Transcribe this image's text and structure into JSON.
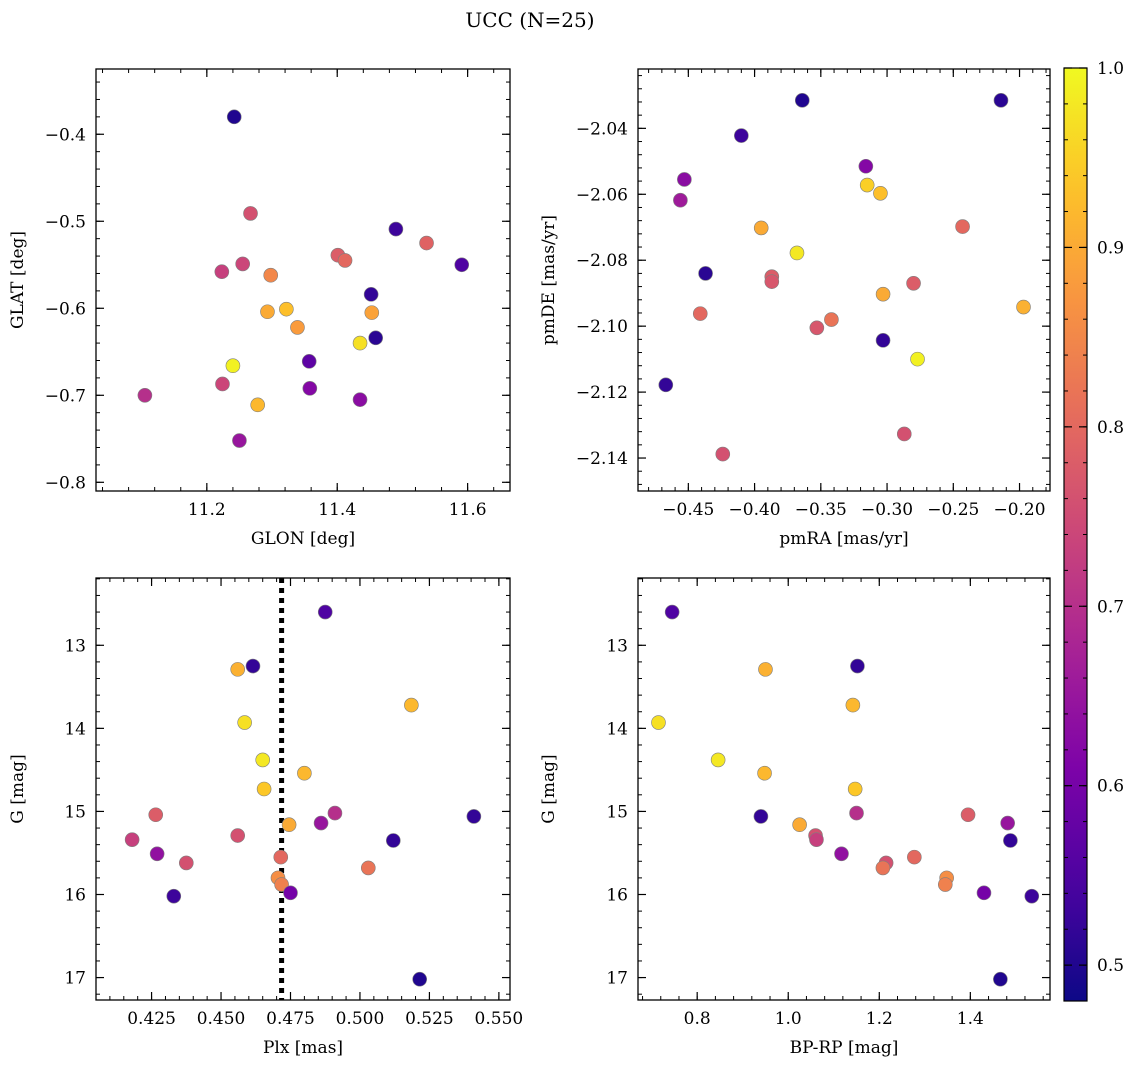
{
  "figure": {
    "suptitle": "UCC (N=25)"
  },
  "colors": {
    "colormap": "plasma",
    "marker_edge": "#7f7f7f",
    "reference_line": "#000000"
  },
  "colorbar": {
    "range": [
      0.48,
      1.0
    ],
    "ticks": [
      0.5,
      0.6,
      0.7,
      0.8,
      0.9,
      1.0
    ],
    "tick_labels": [
      "0.5",
      "0.6",
      "0.7",
      "0.8",
      "0.9",
      "1.0"
    ]
  },
  "chart_data": [
    {
      "type": "scatter",
      "xlabel": "GLON [deg]",
      "ylabel": "GLAT [deg]",
      "xlim": [
        11.03,
        11.665
      ],
      "ylim": [
        -0.81,
        -0.325
      ],
      "xticks": [
        11.2,
        11.4,
        11.6
      ],
      "xtick_labels": [
        "11.2",
        "11.4",
        "11.6"
      ],
      "yticks": [
        -0.8,
        -0.7,
        -0.6,
        -0.5,
        -0.4
      ],
      "ytick_labels": [
        "−0.8",
        "−0.7",
        "−0.6",
        "−0.5",
        "−0.4"
      ],
      "points": [
        {
          "x": 11.242,
          "y": -0.38,
          "c": 0.5
        },
        {
          "x": 11.267,
          "y": -0.491,
          "c": 0.76
        },
        {
          "x": 11.49,
          "y": -0.509,
          "c": 0.53
        },
        {
          "x": 11.537,
          "y": -0.525,
          "c": 0.79
        },
        {
          "x": 11.401,
          "y": -0.539,
          "c": 0.78
        },
        {
          "x": 11.412,
          "y": -0.545,
          "c": 0.8
        },
        {
          "x": 11.591,
          "y": -0.55,
          "c": 0.55
        },
        {
          "x": 11.255,
          "y": -0.549,
          "c": 0.74
        },
        {
          "x": 11.223,
          "y": -0.558,
          "c": 0.73
        },
        {
          "x": 11.298,
          "y": -0.562,
          "c": 0.85
        },
        {
          "x": 11.452,
          "y": -0.584,
          "c": 0.52
        },
        {
          "x": 11.322,
          "y": -0.601,
          "c": 0.93
        },
        {
          "x": 11.293,
          "y": -0.604,
          "c": 0.9
        },
        {
          "x": 11.453,
          "y": -0.605,
          "c": 0.89
        },
        {
          "x": 11.339,
          "y": -0.622,
          "c": 0.88
        },
        {
          "x": 11.459,
          "y": -0.634,
          "c": 0.51
        },
        {
          "x": 11.435,
          "y": -0.64,
          "c": 0.97
        },
        {
          "x": 11.357,
          "y": -0.661,
          "c": 0.57
        },
        {
          "x": 11.24,
          "y": -0.666,
          "c": 0.99
        },
        {
          "x": 11.224,
          "y": -0.687,
          "c": 0.74
        },
        {
          "x": 11.358,
          "y": -0.692,
          "c": 0.62
        },
        {
          "x": 11.105,
          "y": -0.7,
          "c": 0.7
        },
        {
          "x": 11.435,
          "y": -0.705,
          "c": 0.63
        },
        {
          "x": 11.278,
          "y": -0.711,
          "c": 0.92
        },
        {
          "x": 11.25,
          "y": -0.752,
          "c": 0.65
        }
      ]
    },
    {
      "type": "scatter",
      "xlabel": "pmRA [mas/yr]",
      "ylabel": "pmDE [mas/yr]",
      "xlim": [
        -0.488,
        -0.177
      ],
      "ylim": [
        -2.15,
        -2.022
      ],
      "xticks": [
        -0.45,
        -0.4,
        -0.35,
        -0.3,
        -0.25,
        -0.2
      ],
      "xtick_labels": [
        "−0.45",
        "−0.40",
        "−0.35",
        "−0.30",
        "−0.25",
        "−0.20"
      ],
      "yticks": [
        -2.14,
        -2.12,
        -2.1,
        -2.08,
        -2.06,
        -2.04
      ],
      "ytick_labels": [
        "−2.14",
        "−2.12",
        "−2.10",
        "−2.08",
        "−2.06",
        "−2.04"
      ],
      "points": [
        {
          "x": -0.364,
          "y": -2.0315,
          "c": 0.5
        },
        {
          "x": -0.214,
          "y": -2.0315,
          "c": 0.51
        },
        {
          "x": -0.41,
          "y": -2.0422,
          "c": 0.53
        },
        {
          "x": -0.316,
          "y": -2.0515,
          "c": 0.62
        },
        {
          "x": -0.453,
          "y": -2.0555,
          "c": 0.63
        },
        {
          "x": -0.315,
          "y": -2.0572,
          "c": 0.95
        },
        {
          "x": -0.456,
          "y": -2.0618,
          "c": 0.66
        },
        {
          "x": -0.305,
          "y": -2.0597,
          "c": 0.93
        },
        {
          "x": -0.395,
          "y": -2.0702,
          "c": 0.9
        },
        {
          "x": -0.243,
          "y": -2.0698,
          "c": 0.8
        },
        {
          "x": -0.368,
          "y": -2.0778,
          "c": 0.98
        },
        {
          "x": -0.437,
          "y": -2.084,
          "c": 0.51
        },
        {
          "x": -0.387,
          "y": -2.085,
          "c": 0.78
        },
        {
          "x": -0.387,
          "y": -2.0865,
          "c": 0.77
        },
        {
          "x": -0.28,
          "y": -2.087,
          "c": 0.78
        },
        {
          "x": -0.303,
          "y": -2.0903,
          "c": 0.9
        },
        {
          "x": -0.197,
          "y": -2.0942,
          "c": 0.91
        },
        {
          "x": -0.441,
          "y": -2.0962,
          "c": 0.8
        },
        {
          "x": -0.342,
          "y": -2.098,
          "c": 0.82
        },
        {
          "x": -0.353,
          "y": -2.1005,
          "c": 0.77
        },
        {
          "x": -0.303,
          "y": -2.1043,
          "c": 0.52
        },
        {
          "x": -0.277,
          "y": -2.11,
          "c": 0.99
        },
        {
          "x": -0.467,
          "y": -2.1178,
          "c": 0.52
        },
        {
          "x": -0.287,
          "y": -2.1327,
          "c": 0.76
        },
        {
          "x": -0.424,
          "y": -2.1388,
          "c": 0.76
        }
      ]
    },
    {
      "type": "scatter",
      "xlabel": "Plx [mas]",
      "ylabel": "G [mag]",
      "xlim": [
        0.405,
        0.554
      ],
      "ylim": [
        17.27,
        12.19
      ],
      "xticks": [
        0.425,
        0.45,
        0.475,
        0.5,
        0.525,
        0.55
      ],
      "xtick_labels": [
        "0.425",
        "0.450",
        "0.475",
        "0.500",
        "0.525",
        "0.550"
      ],
      "yticks": [
        13,
        14,
        15,
        16,
        17
      ],
      "ytick_labels": [
        "13",
        "14",
        "15",
        "16",
        "17"
      ],
      "vline": {
        "x": 0.4718,
        "style": "dotted"
      },
      "points": [
        {
          "x": 0.4875,
          "y": 12.6,
          "c": 0.55
        },
        {
          "x": 0.4615,
          "y": 13.25,
          "c": 0.52
        },
        {
          "x": 0.456,
          "y": 13.29,
          "c": 0.91
        },
        {
          "x": 0.5185,
          "y": 13.72,
          "c": 0.92
        },
        {
          "x": 0.4585,
          "y": 13.93,
          "c": 0.97
        },
        {
          "x": 0.465,
          "y": 14.38,
          "c": 0.98
        },
        {
          "x": 0.48,
          "y": 14.54,
          "c": 0.92
        },
        {
          "x": 0.4655,
          "y": 14.73,
          "c": 0.94
        },
        {
          "x": 0.4265,
          "y": 15.04,
          "c": 0.78
        },
        {
          "x": 0.491,
          "y": 15.02,
          "c": 0.7
        },
        {
          "x": 0.541,
          "y": 15.06,
          "c": 0.52
        },
        {
          "x": 0.486,
          "y": 15.14,
          "c": 0.65
        },
        {
          "x": 0.4745,
          "y": 15.16,
          "c": 0.9
        },
        {
          "x": 0.456,
          "y": 15.29,
          "c": 0.76
        },
        {
          "x": 0.418,
          "y": 15.34,
          "c": 0.73
        },
        {
          "x": 0.512,
          "y": 15.35,
          "c": 0.52
        },
        {
          "x": 0.427,
          "y": 15.51,
          "c": 0.64
        },
        {
          "x": 0.4715,
          "y": 15.55,
          "c": 0.8
        },
        {
          "x": 0.4375,
          "y": 15.62,
          "c": 0.76
        },
        {
          "x": 0.503,
          "y": 15.68,
          "c": 0.82
        },
        {
          "x": 0.4705,
          "y": 15.8,
          "c": 0.86
        },
        {
          "x": 0.4718,
          "y": 15.88,
          "c": 0.84
        },
        {
          "x": 0.475,
          "y": 15.98,
          "c": 0.6
        },
        {
          "x": 0.433,
          "y": 16.02,
          "c": 0.53
        },
        {
          "x": 0.5215,
          "y": 17.02,
          "c": 0.5
        }
      ]
    },
    {
      "type": "scatter",
      "xlabel": "BP-RP [mag]",
      "ylabel": "G [mag]",
      "xlim": [
        0.67,
        1.575
      ],
      "ylim": [
        17.27,
        12.19
      ],
      "xticks": [
        0.8,
        1.0,
        1.2,
        1.4
      ],
      "xtick_labels": [
        "0.8",
        "1.0",
        "1.2",
        "1.4"
      ],
      "yticks": [
        13,
        14,
        15,
        16,
        17
      ],
      "ytick_labels": [
        "13",
        "14",
        "15",
        "16",
        "17"
      ],
      "points": [
        {
          "x": 0.745,
          "y": 12.6,
          "c": 0.55
        },
        {
          "x": 1.152,
          "y": 13.25,
          "c": 0.52
        },
        {
          "x": 0.95,
          "y": 13.29,
          "c": 0.91
        },
        {
          "x": 1.142,
          "y": 13.72,
          "c": 0.92
        },
        {
          "x": 0.715,
          "y": 13.93,
          "c": 0.97
        },
        {
          "x": 0.846,
          "y": 14.38,
          "c": 0.98
        },
        {
          "x": 0.948,
          "y": 14.54,
          "c": 0.92
        },
        {
          "x": 1.147,
          "y": 14.73,
          "c": 0.94
        },
        {
          "x": 1.395,
          "y": 15.04,
          "c": 0.78
        },
        {
          "x": 1.15,
          "y": 15.02,
          "c": 0.7
        },
        {
          "x": 0.94,
          "y": 15.06,
          "c": 0.52
        },
        {
          "x": 1.482,
          "y": 15.14,
          "c": 0.65
        },
        {
          "x": 1.025,
          "y": 15.16,
          "c": 0.9
        },
        {
          "x": 1.06,
          "y": 15.29,
          "c": 0.76
        },
        {
          "x": 1.062,
          "y": 15.34,
          "c": 0.73
        },
        {
          "x": 1.488,
          "y": 15.35,
          "c": 0.52
        },
        {
          "x": 1.117,
          "y": 15.51,
          "c": 0.64
        },
        {
          "x": 1.277,
          "y": 15.55,
          "c": 0.8
        },
        {
          "x": 1.215,
          "y": 15.62,
          "c": 0.76
        },
        {
          "x": 1.208,
          "y": 15.68,
          "c": 0.82
        },
        {
          "x": 1.348,
          "y": 15.8,
          "c": 0.86
        },
        {
          "x": 1.345,
          "y": 15.88,
          "c": 0.84
        },
        {
          "x": 1.43,
          "y": 15.98,
          "c": 0.6
        },
        {
          "x": 1.535,
          "y": 16.02,
          "c": 0.53
        },
        {
          "x": 1.466,
          "y": 17.02,
          "c": 0.5
        }
      ]
    }
  ]
}
